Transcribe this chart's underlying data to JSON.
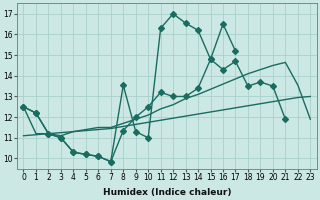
{
  "xlabel": "Humidex (Indice chaleur)",
  "bg_color": "#cce8e4",
  "grid_color": "#aacfcb",
  "line_color": "#1a6b60",
  "xlim": [
    -0.5,
    23.5
  ],
  "ylim": [
    9.5,
    17.5
  ],
  "xticks": [
    0,
    1,
    2,
    3,
    4,
    5,
    6,
    7,
    8,
    9,
    10,
    11,
    12,
    13,
    14,
    15,
    16,
    17,
    18,
    19,
    20,
    21,
    22,
    23
  ],
  "yticks": [
    10,
    11,
    12,
    13,
    14,
    15,
    16,
    17
  ],
  "line1_x": [
    0,
    1,
    2,
    3,
    4,
    5,
    6,
    7,
    8,
    9,
    10,
    11,
    12,
    13,
    14,
    15,
    16,
    17,
    18,
    19,
    20,
    21,
    22,
    23
  ],
  "line1_y": [
    12.5,
    12.2,
    11.2,
    11.0,
    10.3,
    10.2,
    10.1,
    9.85,
    13.55,
    11.3,
    11.0,
    16.3,
    17.0,
    16.55,
    16.2,
    14.8,
    16.5,
    15.2,
    null,
    null,
    null,
    null,
    null,
    null
  ],
  "line2_x": [
    0,
    1,
    2,
    3,
    4,
    5,
    6,
    7,
    8,
    9,
    10,
    11,
    12,
    13,
    14,
    15,
    16,
    17,
    18,
    19,
    20,
    21,
    22,
    23
  ],
  "line2_y": [
    12.5,
    12.2,
    11.2,
    11.0,
    10.3,
    10.2,
    10.1,
    9.85,
    11.35,
    12.0,
    12.5,
    13.2,
    13.0,
    13.0,
    13.4,
    14.8,
    14.3,
    14.7,
    13.5,
    13.7,
    13.5,
    11.9,
    null,
    null
  ],
  "line3_x": [
    0,
    1,
    2,
    3,
    4,
    5,
    6,
    7,
    8,
    9,
    10,
    11,
    12,
    13,
    14,
    15,
    16,
    17,
    18,
    19,
    20,
    21,
    22,
    23
  ],
  "line3_y": [
    12.5,
    11.2,
    11.2,
    11.1,
    11.3,
    11.4,
    11.5,
    11.5,
    11.7,
    11.9,
    12.1,
    12.4,
    12.6,
    12.9,
    13.1,
    13.35,
    13.6,
    13.85,
    14.1,
    14.3,
    14.5,
    14.65,
    13.55,
    11.9
  ],
  "line4_x": [
    0,
    1,
    2,
    3,
    4,
    5,
    6,
    7,
    8,
    9,
    10,
    11,
    12,
    13,
    14,
    15,
    16,
    17,
    18,
    19,
    20,
    21,
    22,
    23
  ],
  "line4_y": [
    11.1,
    11.15,
    11.2,
    11.25,
    11.3,
    11.35,
    11.4,
    11.45,
    11.55,
    11.65,
    11.75,
    11.85,
    11.95,
    12.05,
    12.15,
    12.25,
    12.35,
    12.45,
    12.55,
    12.65,
    12.75,
    12.85,
    12.95,
    13.0
  ],
  "markersize": 3,
  "linewidth": 1.0
}
